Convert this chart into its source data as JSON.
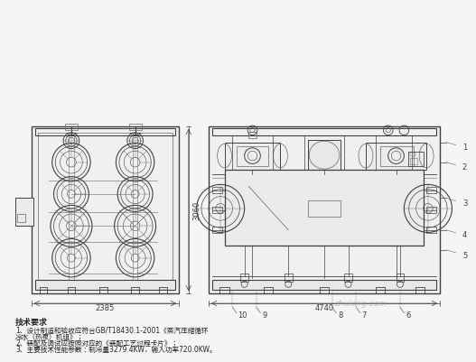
{
  "background_color": "#f5f5f5",
  "drawing_color": "#404040",
  "light_color": "#666666",
  "tech_title": "技术要求",
  "tech_line1": "1、设计制造和验收应符合GB/T18430.1-2001《蒸汽压缩循环",
  "tech_line2": "冷水（热泵）机组》；",
  "tech_line3": "2、装配及调试应按照对应的《装配工艺过程卡片》；",
  "tech_line4": "3、主要技术性能参数：制冷量3279.4KW，输入功率720.0KW。",
  "dim_left": "2385",
  "dim_right": "4740",
  "dim_height": "3060",
  "watermark": "zhulong.com",
  "labels_right": [
    "1",
    "2",
    "3",
    "4",
    "5"
  ],
  "labels_bottom": [
    "10",
    "9",
    "8",
    "7",
    "6"
  ]
}
